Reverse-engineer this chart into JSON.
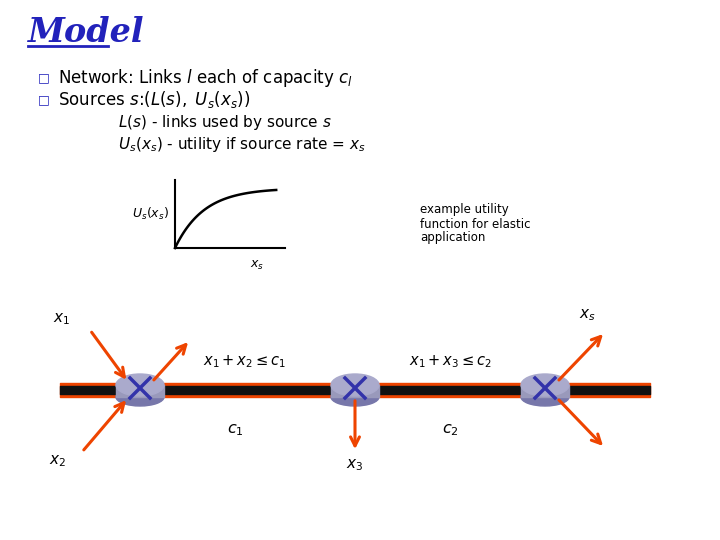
{
  "title": "Model",
  "title_color": "#2222BB",
  "title_fontsize": 24,
  "bg_color": "#FFFFFF",
  "bullet1": "Network: Links $l$ each of capacity $c_l$",
  "bullet2": "Sources $s$:$(L(s),\\ U_s(x_s))$",
  "indent1": "$L(s)$ - links used by source $s$",
  "indent2": "$U_s(x_s)$ - utility if source rate = $x_s$",
  "example_text1": "example utility",
  "example_text2": "function for elastic",
  "example_text3": "application",
  "ylabel_curve": "$U_s(x_s)$",
  "xlabel_curve": "$x_s$",
  "constraint1": "$x_1 + x_2 \\leq c_1$",
  "constraint2": "$x_1 + x_3 \\leq c_2$",
  "cap1": "$c_1$",
  "cap2": "$c_2$",
  "src_x1": "$x_1$",
  "src_x2": "$x_2$",
  "src_x3": "$x_3$",
  "src_xs": "$x_s$",
  "orange": "#EE4400",
  "black": "#000000",
  "router_top": "#AAAACC",
  "router_mid": "#9999BB",
  "router_bot": "#7777AA",
  "text_color": "#000000",
  "bullet_color": "#2222BB",
  "band_orange": "#EE4400",
  "band_black": "#111111"
}
